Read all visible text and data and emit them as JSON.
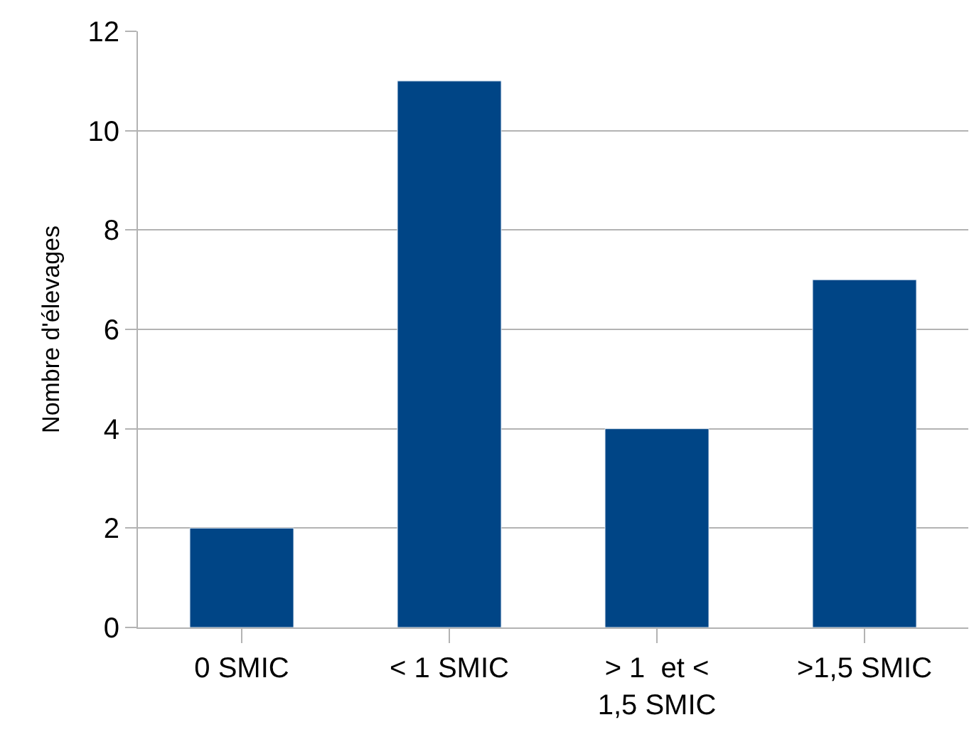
{
  "chart_data": {
    "type": "bar",
    "ylabel": "Nombre d'élevages",
    "categories": [
      "0 SMIC",
      "< 1 SMIC",
      "> 1  et < 1,5 SMIC",
      ">1,5 SMIC"
    ],
    "values": [
      2,
      11,
      4,
      7
    ],
    "color": "#004586",
    "ylim": [
      0,
      12
    ],
    "yticks": [
      0,
      2,
      4,
      6,
      8,
      10,
      12
    ],
    "grid": "y",
    "legend": false
  }
}
